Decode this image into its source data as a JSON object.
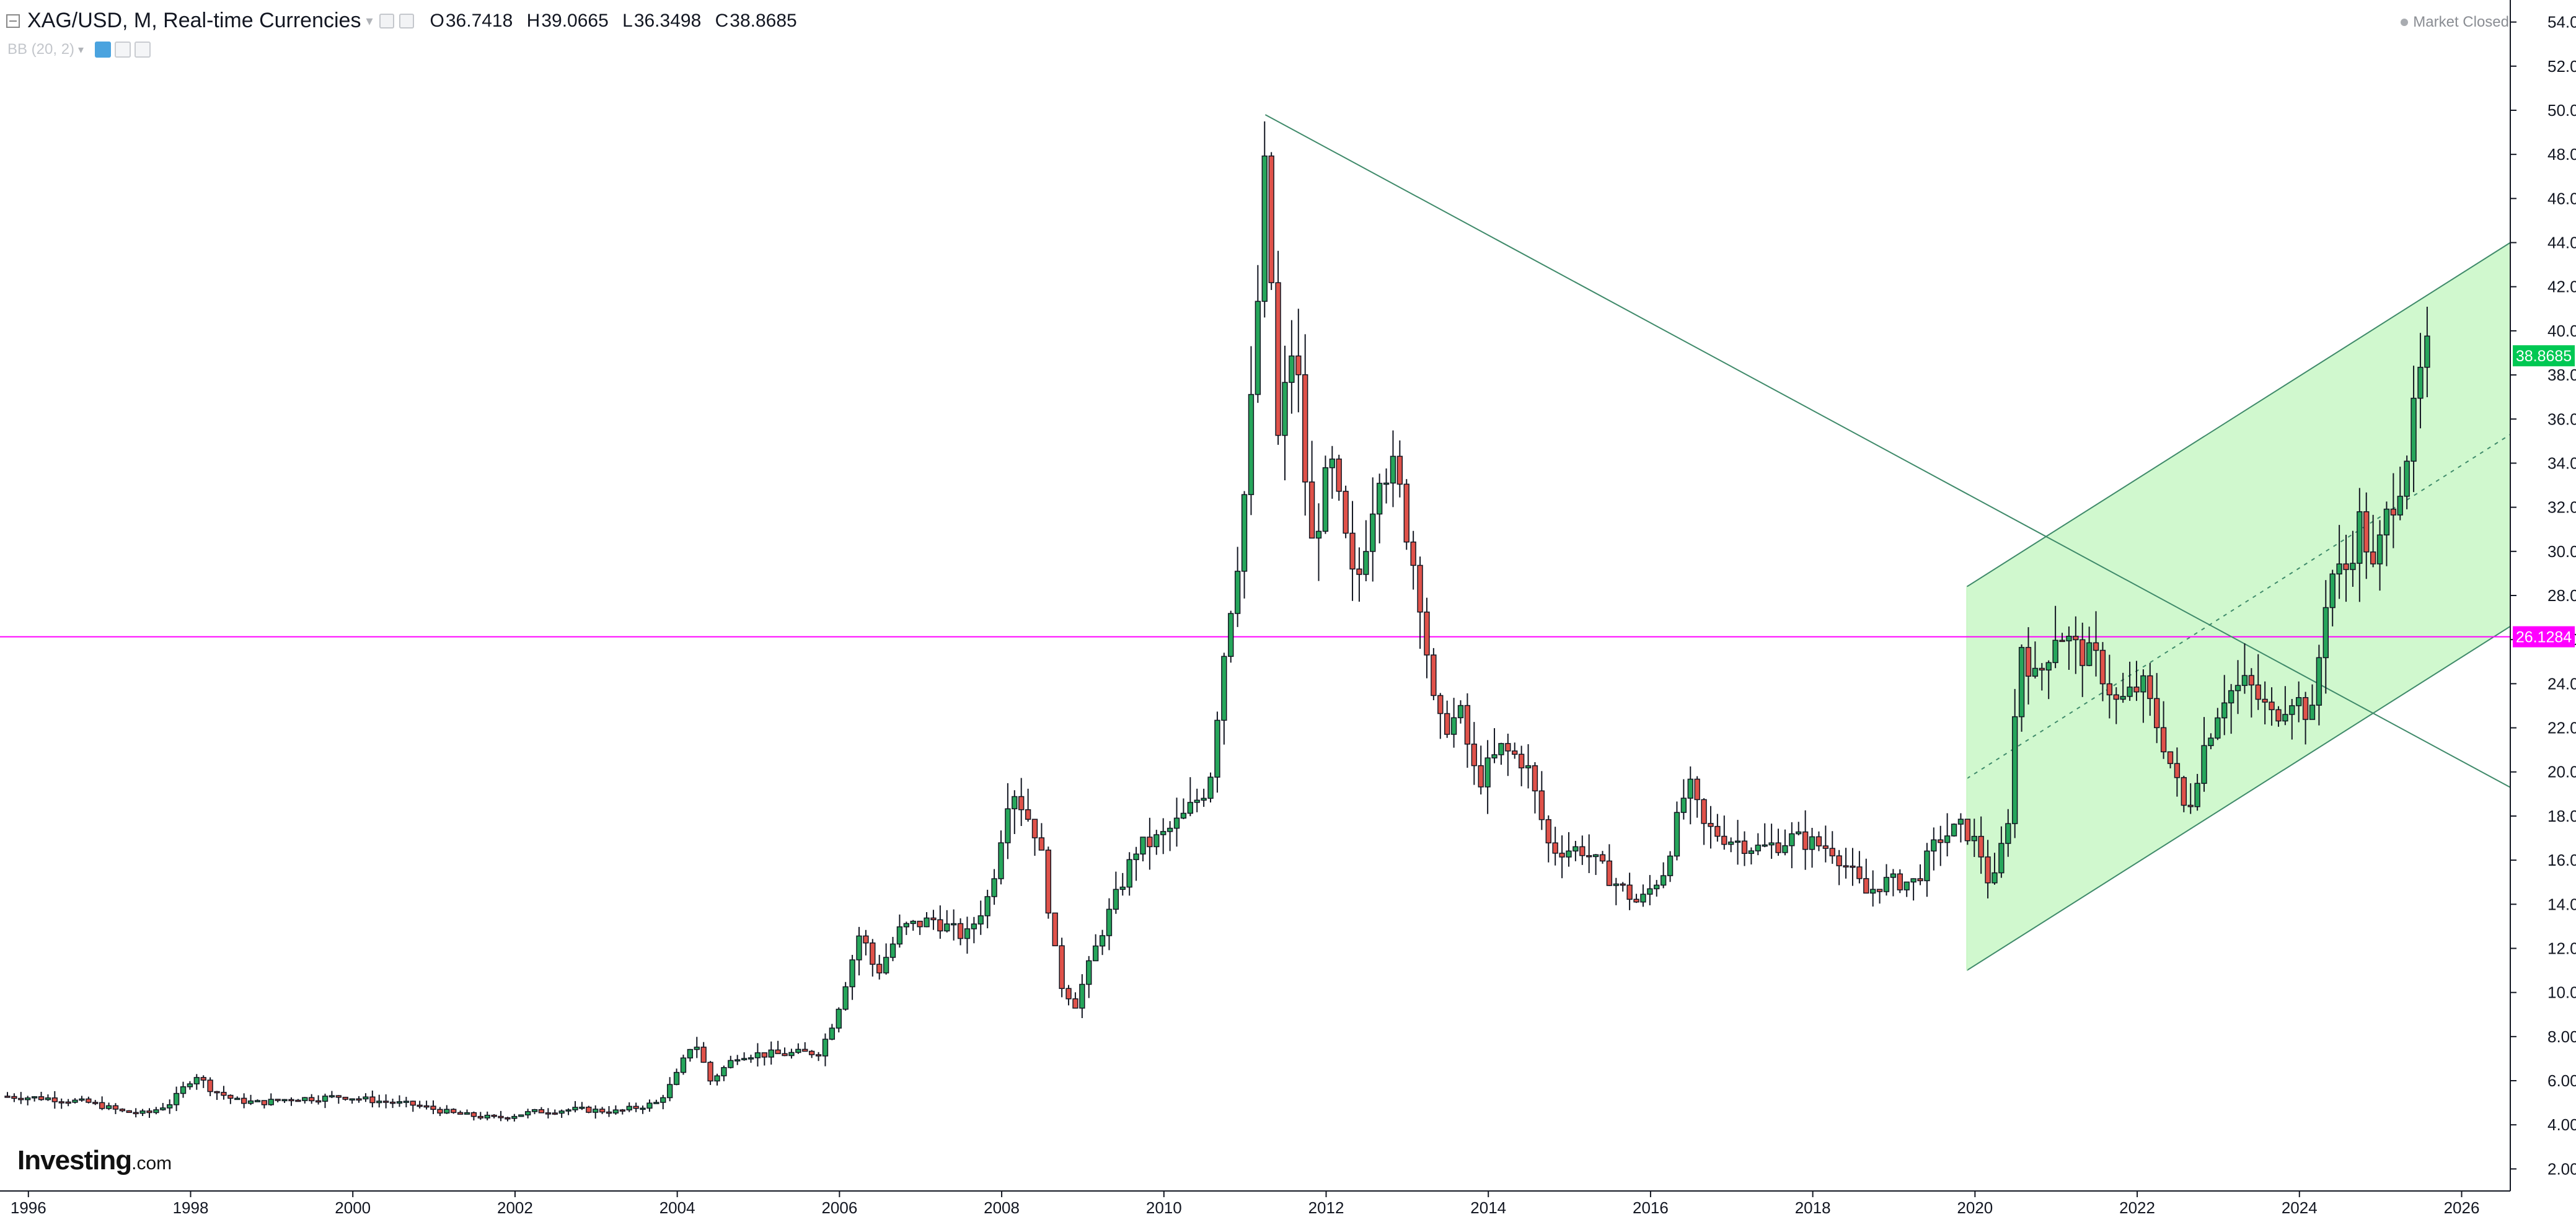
{
  "header": {
    "symbol": "XAG/USD, M, Real-time Currencies",
    "ohlc": [
      {
        "key": "O",
        "value": "36.7418"
      },
      {
        "key": "H",
        "value": "39.0665"
      },
      {
        "key": "L",
        "value": "36.3498"
      },
      {
        "key": "C",
        "value": "38.8685"
      }
    ],
    "indicator": "BB (20, 2)",
    "market_status": "Market Closed"
  },
  "logo": {
    "brand": "Investing",
    "tld": ".com"
  },
  "colors": {
    "up": "#26a65b",
    "down": "#e0524a",
    "wick": "#131722",
    "channel_fill": "#c8f7c5",
    "channel_line": "#3f8a6a",
    "level_line": "#ff00ff",
    "last_price_bg": "#00c853",
    "axis_text": "#131722"
  },
  "chart_data": {
    "type": "candlestick",
    "ylim": [
      1.0,
      55.0
    ],
    "y_ticks": [
      "2.0000",
      "4.0000",
      "6.0000",
      "8.0000",
      "10.0000",
      "12.0000",
      "14.0000",
      "16.0000",
      "18.0000",
      "20.0000",
      "22.0000",
      "24.0000",
      "26.0000",
      "28.0000",
      "30.0000",
      "32.0000",
      "34.0000",
      "36.0000",
      "38.0000",
      "40.0000",
      "42.0000",
      "44.0000",
      "46.0000",
      "48.0000",
      "50.0000",
      "52.0000",
      "54.0000"
    ],
    "x_range": [
      1995.65,
      2026.6
    ],
    "x_ticks": [
      "1996",
      "1998",
      "2000",
      "2002",
      "2004",
      "2006",
      "2008",
      "2010",
      "2012",
      "2014",
      "2016",
      "2018",
      "2020",
      "2022",
      "2024",
      "2026"
    ],
    "last_price": {
      "value": 38.8685,
      "label": "38.8685"
    },
    "horizontal_level": {
      "value": 26.1284,
      "label": "26.1284"
    },
    "trendline": {
      "from": [
        2011.25,
        49.8
      ],
      "to": [
        2026.6,
        19.3
      ]
    },
    "channel": {
      "start": 2019.9,
      "end": 2026.6,
      "upper": [
        [
          2019.9,
          28.4
        ],
        [
          2026.6,
          44.0
        ]
      ],
      "lower": [
        [
          2019.9,
          11.0
        ],
        [
          2026.6,
          26.6
        ]
      ],
      "mid": [
        [
          2019.9,
          19.7
        ],
        [
          2026.6,
          35.3
        ]
      ]
    },
    "price_path": [
      [
        1995.7,
        5.3
      ],
      [
        1996.3,
        5.2
      ],
      [
        1996.8,
        5.0
      ],
      [
        1997.2,
        4.6
      ],
      [
        1997.5,
        4.5
      ],
      [
        1997.8,
        5.0
      ],
      [
        1998.1,
        6.3
      ],
      [
        1998.3,
        5.6
      ],
      [
        1998.6,
        5.1
      ],
      [
        1998.9,
        5.0
      ],
      [
        1999.3,
        5.2
      ],
      [
        1999.6,
        5.2
      ],
      [
        1999.9,
        5.3
      ],
      [
        2000.3,
        5.1
      ],
      [
        2000.8,
        4.9
      ],
      [
        2001.3,
        4.5
      ],
      [
        2001.8,
        4.3
      ],
      [
        2002.3,
        4.6
      ],
      [
        2002.8,
        4.7
      ],
      [
        2003.3,
        4.6
      ],
      [
        2003.8,
        5.0
      ],
      [
        2004.0,
        6.0
      ],
      [
        2004.25,
        7.9
      ],
      [
        2004.45,
        6.0
      ],
      [
        2004.8,
        7.2
      ],
      [
        2005.3,
        7.2
      ],
      [
        2005.8,
        7.3
      ],
      [
        2006.0,
        9.0
      ],
      [
        2006.3,
        12.8
      ],
      [
        2006.5,
        10.8
      ],
      [
        2006.8,
        12.9
      ],
      [
        2007.2,
        13.3
      ],
      [
        2007.6,
        12.5
      ],
      [
        2007.9,
        14.5
      ],
      [
        2008.15,
        19.5
      ],
      [
        2008.5,
        17.0
      ],
      [
        2008.75,
        10.5
      ],
      [
        2008.95,
        9.5
      ],
      [
        2009.3,
        13.0
      ],
      [
        2009.7,
        16.5
      ],
      [
        2010.0,
        17.0
      ],
      [
        2010.3,
        18.0
      ],
      [
        2010.6,
        19.5
      ],
      [
        2010.8,
        26.0
      ],
      [
        2011.0,
        31.0
      ],
      [
        2011.15,
        38.0
      ],
      [
        2011.3,
        48.0
      ],
      [
        2011.45,
        35.0
      ],
      [
        2011.65,
        40.0
      ],
      [
        2011.85,
        30.0
      ],
      [
        2012.1,
        34.0
      ],
      [
        2012.4,
        28.0
      ],
      [
        2012.7,
        34.0
      ],
      [
        2012.9,
        33.5
      ],
      [
        2013.2,
        28.0
      ],
      [
        2013.4,
        22.0
      ],
      [
        2013.7,
        22.5
      ],
      [
        2013.9,
        19.5
      ],
      [
        2014.2,
        21.0
      ],
      [
        2014.5,
        20.5
      ],
      [
        2014.8,
        16.5
      ],
      [
        2015.2,
        16.5
      ],
      [
        2015.6,
        15.0
      ],
      [
        2015.9,
        14.0
      ],
      [
        2016.2,
        15.5
      ],
      [
        2016.5,
        19.5
      ],
      [
        2016.7,
        17.5
      ],
      [
        2017.0,
        17.0
      ],
      [
        2017.4,
        16.5
      ],
      [
        2017.8,
        17.0
      ],
      [
        2018.3,
        16.5
      ],
      [
        2018.7,
        14.5
      ],
      [
        2018.9,
        15.0
      ],
      [
        2019.3,
        15.0
      ],
      [
        2019.6,
        17.0
      ],
      [
        2019.9,
        17.5
      ],
      [
        2020.1,
        16.5
      ],
      [
        2020.25,
        14.5
      ],
      [
        2020.45,
        18.0
      ],
      [
        2020.6,
        26.0
      ],
      [
        2020.8,
        24.0
      ],
      [
        2021.05,
        26.5
      ],
      [
        2021.3,
        25.5
      ],
      [
        2021.55,
        25.0
      ],
      [
        2021.8,
        23.0
      ],
      [
        2022.1,
        24.0
      ],
      [
        2022.4,
        21.0
      ],
      [
        2022.65,
        18.0
      ],
      [
        2022.85,
        21.0
      ],
      [
        2023.1,
        23.5
      ],
      [
        2023.4,
        24.0
      ],
      [
        2023.7,
        22.5
      ],
      [
        2023.95,
        23.5
      ],
      [
        2024.2,
        22.5
      ],
      [
        2024.4,
        29.0
      ],
      [
        2024.6,
        29.0
      ],
      [
        2024.8,
        31.5
      ],
      [
        2024.95,
        29.0
      ],
      [
        2025.15,
        32.0
      ],
      [
        2025.3,
        33.5
      ],
      [
        2025.45,
        36.0
      ],
      [
        2025.58,
        38.87
      ]
    ]
  }
}
